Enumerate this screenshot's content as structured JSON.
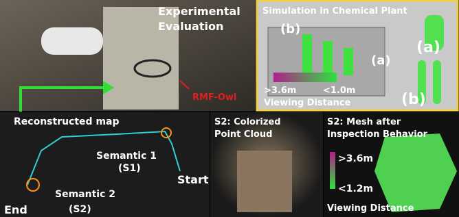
{
  "photo": {
    "title": [
      "Experimental",
      "Evaluation"
    ],
    "robot_label": "RMF-Owl"
  },
  "simulation": {
    "title": "Simulation in Chemical Plant",
    "labels": [
      "(b)",
      "(a)",
      "(a)",
      "(b)"
    ],
    "colorbar": {
      "max_label": ">3.6m",
      "min_label": "<1.0m",
      "caption": "Viewing Distance"
    }
  },
  "map": {
    "title": "Reconstructed map",
    "semantic_1": [
      "Semantic 1",
      "(S1)"
    ],
    "start": "Start",
    "semantic_2": [
      "Semantic 2",
      "(S2)"
    ],
    "end": "End"
  },
  "point_cloud": {
    "title": [
      "S2: Colorized",
      "Point Cloud"
    ]
  },
  "mesh": {
    "title": [
      "S2: Mesh after",
      "Inspection Behavior"
    ],
    "colorbar": {
      "max_label": ">3.6m",
      "min_label": "<1.2m",
      "caption": "Viewing Distance"
    }
  }
}
